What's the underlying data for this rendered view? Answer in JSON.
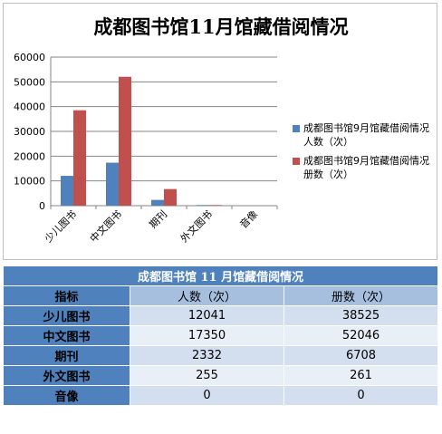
{
  "chart_data": {
    "type": "bar",
    "title": "成都图书馆11月馆藏借阅情况",
    "categories": [
      "少儿图书",
      "中文图书",
      "期刊",
      "外文图书",
      "音像"
    ],
    "series": [
      {
        "name": "成都图书馆9月馆藏借阅情况 人数（次）",
        "values": [
          12041,
          17350,
          2332,
          255,
          0
        ],
        "color": "#4f81bd"
      },
      {
        "name": "成都图书馆9月馆藏借阅情况 册数（次）",
        "values": [
          38525,
          52046,
          6708,
          261,
          0
        ],
        "color": "#c0504d"
      }
    ],
    "ylim": [
      0,
      60000
    ],
    "yticks": [
      "0",
      "10000",
      "20000",
      "30000",
      "40000",
      "50000",
      "60000"
    ],
    "grid": true,
    "legend": "right"
  },
  "table": {
    "title": "成都图书馆 11 月馆藏借阅情况",
    "header": [
      "指标",
      "人数（次）",
      "册数（次）"
    ],
    "rows": [
      {
        "label": "少儿图书",
        "people": "12041",
        "volumes": "38525"
      },
      {
        "label": "中文图书",
        "people": "17350",
        "volumes": "52046"
      },
      {
        "label": "期刊",
        "people": "2332",
        "volumes": "6708"
      },
      {
        "label": "外文图书",
        "people": "255",
        "volumes": "261"
      },
      {
        "label": "音像",
        "people": "0",
        "volumes": "0"
      }
    ]
  }
}
